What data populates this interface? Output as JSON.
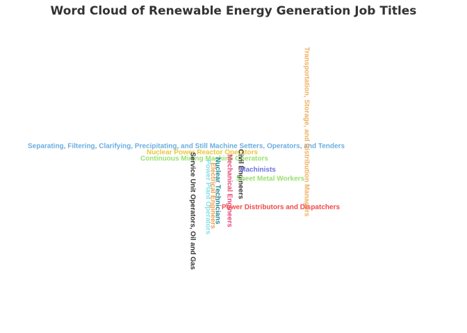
{
  "chart_data": {
    "type": "word_cloud",
    "title": "Word Cloud of Renewable Energy Generation Job Titles",
    "words": [
      {
        "text": "Separating, Filtering, Clarifying, Precipitating, and Still Machine Setters, Operators, and Tenders",
        "orientation": "horizontal",
        "color": "#6aaee0"
      },
      {
        "text": "Transportation, Storage, and Distribution Managers",
        "orientation": "vertical",
        "color": "#f0b060"
      },
      {
        "text": "Nuclear Power Reactor Operators",
        "orientation": "horizontal",
        "color": "#e8c840"
      },
      {
        "text": "Continuous Mining Machine Operators",
        "orientation": "horizontal",
        "color": "#98e070"
      },
      {
        "text": "Service Unit Operators, Oil and Gas",
        "orientation": "vertical",
        "color": "#333333"
      },
      {
        "text": "Power Plant Operators",
        "orientation": "vertical",
        "color": "#88e0e8"
      },
      {
        "text": "Electrical Engineers",
        "orientation": "vertical",
        "color": "#f0a050"
      },
      {
        "text": "Nuclear Technicians",
        "orientation": "vertical",
        "color": "#208898"
      },
      {
        "text": "Mechanical Engineers",
        "orientation": "vertical",
        "color": "#e84878"
      },
      {
        "text": "Civil Engineers",
        "orientation": "vertical",
        "color": "#333333"
      },
      {
        "text": "Machinists",
        "orientation": "horizontal",
        "color": "#7070e0"
      },
      {
        "text": "Sheet Metal Workers",
        "orientation": "horizontal",
        "color": "#98e070"
      },
      {
        "text": "Power Distributors and Dispatchers",
        "orientation": "horizontal",
        "color": "#f04848"
      }
    ]
  }
}
